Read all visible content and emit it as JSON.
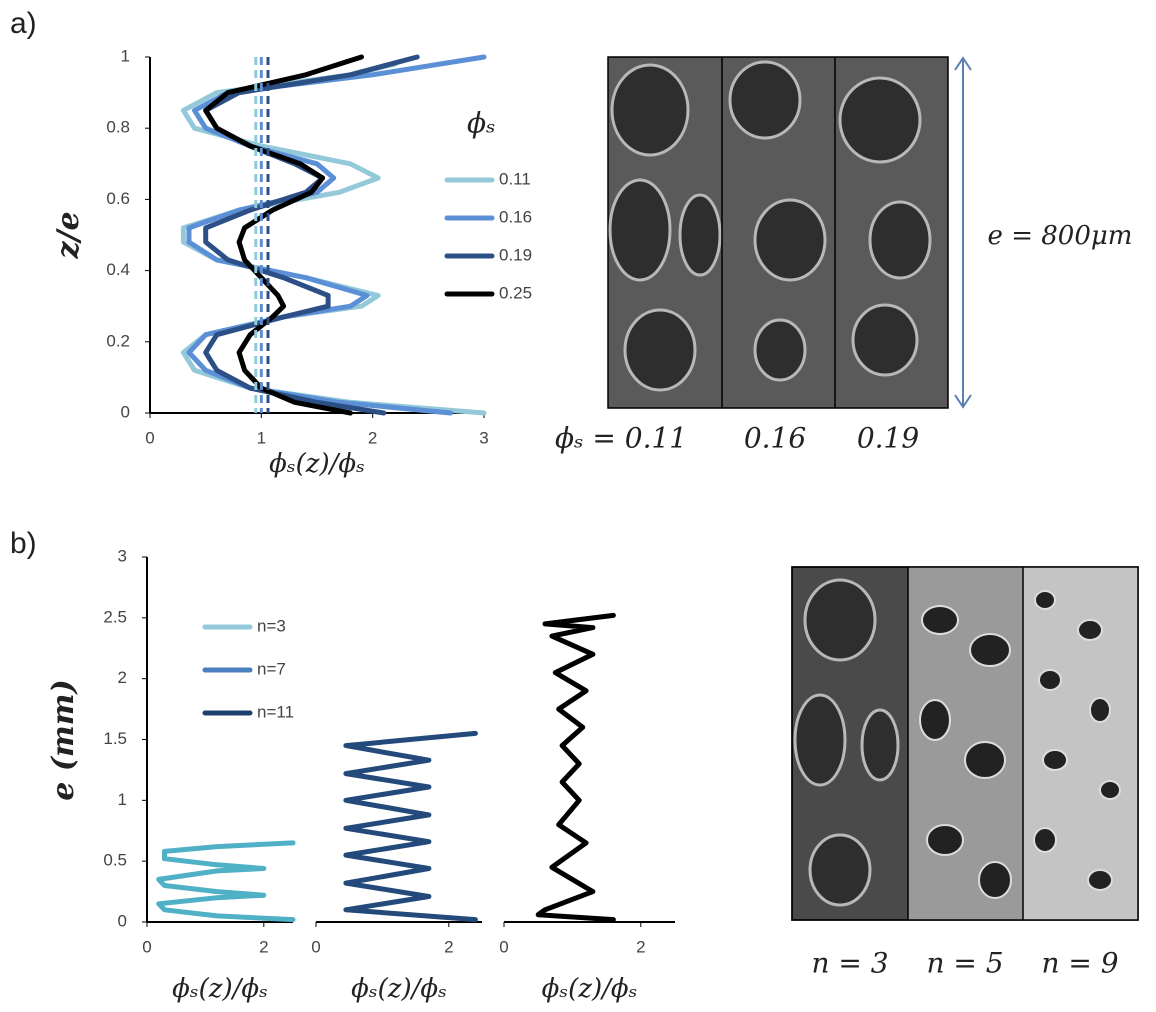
{
  "figure": {
    "panel_labels": [
      "a)",
      "b)"
    ],
    "image_a_captions": [
      "ϕₛ = 0.11",
      "0.16",
      "0.19"
    ],
    "image_a_scale": "e = 800μm",
    "image_b_captions": [
      "n = 3",
      "n = 5",
      "n = 9"
    ]
  },
  "chart_data": [
    {
      "type": "line",
      "x_label": "ϕₛ(z)/ϕₛ",
      "y_label": "z/e",
      "legend_title": "ϕₛ",
      "xlim": [
        0,
        3
      ],
      "xticks": [
        0,
        1,
        2,
        3
      ],
      "ylim": [
        0,
        1
      ],
      "yticks": [
        0,
        0.2,
        0.4,
        0.6,
        0.8,
        1
      ],
      "reference_lines": [
        {
          "x": 0.95,
          "color": "#94c9d9"
        },
        {
          "x": 1.0,
          "color": "#5b8fd6"
        },
        {
          "x": 1.06,
          "color": "#2c4f86"
        }
      ],
      "series": [
        {
          "name": "0.11",
          "color": "#94c9d9",
          "x": [
            3.0,
            1.8,
            0.9,
            0.4,
            0.3,
            0.5,
            1.2,
            1.9,
            2.05,
            1.4,
            0.6,
            0.3,
            0.3,
            0.8,
            1.7,
            2.05,
            1.8,
            1.0,
            0.4,
            0.3,
            0.6,
            1.8,
            2.2
          ],
          "values": [
            0,
            0.03,
            0.07,
            0.12,
            0.17,
            0.22,
            0.27,
            0.3,
            0.33,
            0.38,
            0.43,
            0.48,
            0.52,
            0.57,
            0.62,
            0.66,
            0.7,
            0.75,
            0.8,
            0.85,
            0.9,
            0.95,
            0.98
          ]
        },
        {
          "name": "0.16",
          "color": "#5b8fd6",
          "x": [
            2.7,
            1.7,
            0.9,
            0.5,
            0.35,
            0.5,
            1.2,
            1.8,
            1.95,
            1.4,
            0.6,
            0.35,
            0.35,
            0.8,
            1.5,
            1.65,
            1.5,
            0.9,
            0.5,
            0.4,
            0.7,
            2.0,
            3.0
          ],
          "values": [
            0,
            0.03,
            0.07,
            0.12,
            0.17,
            0.22,
            0.27,
            0.3,
            0.33,
            0.38,
            0.43,
            0.48,
            0.52,
            0.57,
            0.62,
            0.66,
            0.7,
            0.75,
            0.8,
            0.85,
            0.9,
            0.95,
            1.0
          ]
        },
        {
          "name": "0.19",
          "color": "#2c4f86",
          "x": [
            2.1,
            1.5,
            0.9,
            0.6,
            0.5,
            0.6,
            1.2,
            1.6,
            1.6,
            1.2,
            0.7,
            0.5,
            0.5,
            0.9,
            1.4,
            1.55,
            1.3,
            0.9,
            0.6,
            0.5,
            0.8,
            1.8,
            2.4
          ],
          "values": [
            0,
            0.03,
            0.07,
            0.12,
            0.17,
            0.22,
            0.27,
            0.3,
            0.33,
            0.38,
            0.43,
            0.48,
            0.52,
            0.57,
            0.62,
            0.66,
            0.7,
            0.75,
            0.8,
            0.85,
            0.9,
            0.95,
            1.0
          ]
        },
        {
          "name": "0.25",
          "color": "#000000",
          "x": [
            1.8,
            1.3,
            1.0,
            0.85,
            0.8,
            0.9,
            1.1,
            1.2,
            1.15,
            1.0,
            0.85,
            0.8,
            0.85,
            1.1,
            1.45,
            1.55,
            1.35,
            0.9,
            0.6,
            0.5,
            0.7,
            1.4,
            1.9
          ],
          "values": [
            0,
            0.03,
            0.07,
            0.12,
            0.17,
            0.22,
            0.27,
            0.3,
            0.33,
            0.38,
            0.43,
            0.48,
            0.52,
            0.57,
            0.62,
            0.66,
            0.7,
            0.75,
            0.8,
            0.85,
            0.9,
            0.95,
            1.0
          ]
        }
      ]
    },
    {
      "type": "line",
      "x_label": "ϕₛ(z)/ϕₛ",
      "y_label": "e (mm)",
      "xlim": [
        0,
        2.5
      ],
      "xticks": [
        0,
        2
      ],
      "ylim": [
        0,
        3
      ],
      "yticks": [
        0,
        0.5,
        1,
        1.5,
        2,
        2.5,
        3
      ],
      "legend": [
        {
          "name": "n=3",
          "color": "#94c9d9"
        },
        {
          "name": "n=7",
          "color": "#4a7fc0"
        },
        {
          "name": "n=11",
          "color": "#1f3f6e"
        }
      ],
      "series": [
        {
          "color": "#4fb0c6",
          "x": [
            2.5,
            1.2,
            0.3,
            0.2,
            1.2,
            2.0,
            1.2,
            0.3,
            0.2,
            1.2,
            2.0,
            1.2,
            0.3,
            0.3,
            1.2,
            2.5
          ],
          "values": [
            0.02,
            0.05,
            0.1,
            0.15,
            0.2,
            0.22,
            0.25,
            0.3,
            0.35,
            0.42,
            0.44,
            0.47,
            0.52,
            0.58,
            0.62,
            0.65
          ]
        }
      ]
    },
    {
      "type": "line",
      "x_label": "ϕₛ(z)/ϕₛ",
      "xlim": [
        0,
        2.5
      ],
      "xticks": [
        0,
        2
      ],
      "ylim": [
        0,
        3
      ],
      "series": [
        {
          "color": "#244a7c",
          "x": [
            2.4,
            0.45,
            1.7,
            0.45,
            1.7,
            0.45,
            1.7,
            0.45,
            1.7,
            0.45,
            1.7,
            0.45,
            1.7,
            0.45,
            2.4
          ],
          "values": [
            0.02,
            0.1,
            0.21,
            0.32,
            0.44,
            0.55,
            0.66,
            0.77,
            0.88,
            1.0,
            1.11,
            1.22,
            1.33,
            1.45,
            1.55
          ]
        }
      ]
    },
    {
      "type": "line",
      "x_label": "ϕₛ(z)/ϕₛ",
      "xlim": [
        0,
        2.5
      ],
      "xticks": [
        0,
        2
      ],
      "ylim": [
        0,
        3
      ],
      "series": [
        {
          "color": "#000000",
          "x": [
            1.6,
            0.5,
            0.6,
            1.3,
            0.7,
            1.2,
            0.8,
            1.1,
            0.85,
            1.1,
            0.85,
            1.15,
            0.8,
            1.2,
            0.75,
            1.3,
            0.7,
            1.3,
            0.6,
            1.6
          ],
          "values": [
            0.02,
            0.06,
            0.1,
            0.25,
            0.45,
            0.65,
            0.8,
            1.0,
            1.15,
            1.3,
            1.45,
            1.6,
            1.75,
            1.9,
            2.05,
            2.2,
            2.35,
            2.42,
            2.45,
            2.52
          ]
        }
      ]
    }
  ]
}
